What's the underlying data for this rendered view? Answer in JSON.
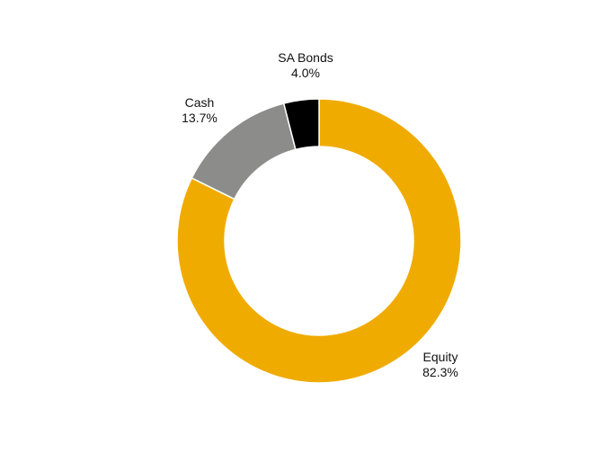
{
  "chart_data": {
    "type": "pie",
    "donut": true,
    "title": "",
    "legend": "none",
    "slices": [
      {
        "name": "Equity",
        "value": 82.3,
        "value_label": "82.3%",
        "color": "#f0ab00"
      },
      {
        "name": "SA Bonds",
        "value": 4.0,
        "value_label": "4.0%",
        "color": "#000000"
      },
      {
        "name": "Cash",
        "value": 13.7,
        "value_label": "13.7%",
        "color": "#8c8d8b"
      }
    ],
    "direction": "counterclockwise",
    "start": "top"
  }
}
